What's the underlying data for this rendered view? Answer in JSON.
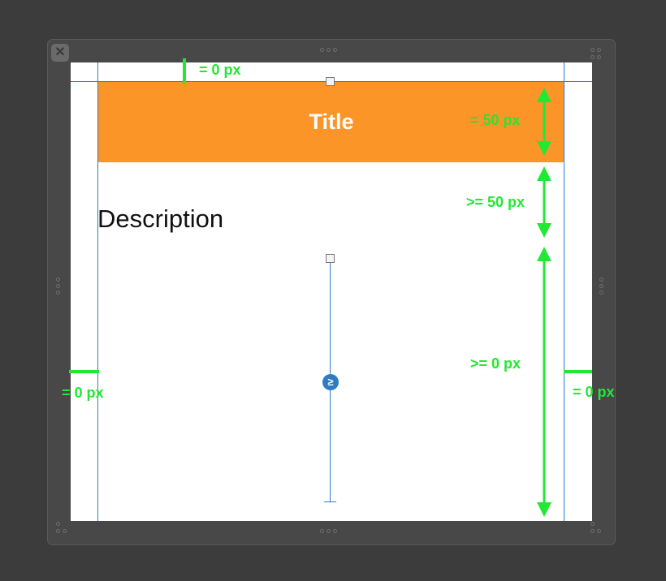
{
  "window": {
    "close_icon": "close-icon",
    "resize_grip_icon": "dots-grip-icon"
  },
  "content": {
    "title": "Title",
    "description": "Description"
  },
  "constraints": {
    "top_spacing": "= 0 px",
    "title_height": "= 50 px",
    "title_to_description": ">= 50 px",
    "description_to_bottom": ">= 0 px",
    "leading": "= 0 px",
    "trailing": "= 0 px",
    "inequality_badge": "≥"
  },
  "colors": {
    "title_background": "#fc9528",
    "title_text": "#ffffff",
    "guide_line": "#2f7bc2",
    "constraint_marker": "#22e833",
    "canvas_background": "#ffffff",
    "editor_background": "#3c3c3c"
  }
}
